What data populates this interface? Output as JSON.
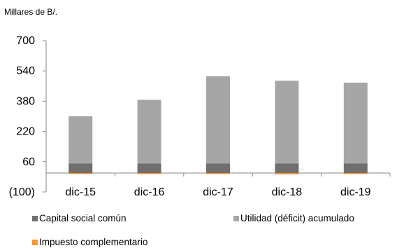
{
  "chart_data": {
    "type": "bar",
    "stacked": true,
    "unit_label": "Millares de B/.",
    "categories": [
      "dic-15",
      "dic-16",
      "dic-17",
      "dic-18",
      "dic-19"
    ],
    "series": [
      {
        "name": "Capital social común",
        "color": "#6f6f6f",
        "values": [
          50,
          50,
          50,
          50,
          50
        ]
      },
      {
        "name": "Utilidad (déficit) acumulado",
        "color": "#a6a6a6",
        "values": [
          250,
          337,
          462,
          438,
          428
        ]
      },
      {
        "name": "Impuesto complementario",
        "color": "#f79632",
        "values": [
          -2,
          -4,
          -5,
          -7,
          -2
        ]
      }
    ],
    "ylim": [
      -100,
      700
    ],
    "yticks": [
      -100,
      60,
      220,
      380,
      540,
      700
    ],
    "ytick_labels": [
      "(100)",
      "60",
      "220",
      "380",
      "540",
      "700"
    ],
    "legend_position": "bottom",
    "grid": false
  }
}
